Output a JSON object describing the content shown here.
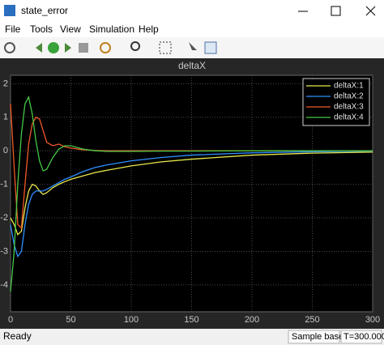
{
  "window": {
    "title": "state_error",
    "menu": [
      "File",
      "Tools",
      "View",
      "Simulation",
      "Help"
    ]
  },
  "status": {
    "left": "Ready",
    "mode": "Sample based",
    "time": "T=300.000"
  },
  "chart_data": {
    "type": "line",
    "title": "deltaX",
    "x": [
      0,
      3,
      6,
      9,
      12,
      15,
      18,
      21,
      24,
      27,
      30,
      35,
      40,
      45,
      50,
      60,
      70,
      80,
      100,
      125,
      150,
      200,
      250,
      300
    ],
    "series": [
      {
        "name": "deltaX:1",
        "color": "#e8e84a",
        "values": [
          -2.0,
          -2.2,
          -2.5,
          -2.4,
          -1.7,
          -1.2,
          -1.0,
          -1.05,
          -1.2,
          -1.3,
          -1.25,
          -1.1,
          -1.0,
          -0.92,
          -0.85,
          -0.75,
          -0.65,
          -0.58,
          -0.45,
          -0.33,
          -0.25,
          -0.13,
          -0.07,
          -0.04
        ]
      },
      {
        "name": "deltaX:2",
        "color": "#2f8fff",
        "values": [
          -2.2,
          -2.8,
          -3.15,
          -3.0,
          -2.2,
          -1.6,
          -1.3,
          -1.2,
          -1.2,
          -1.2,
          -1.15,
          -1.05,
          -0.95,
          -0.85,
          -0.78,
          -0.62,
          -0.5,
          -0.42,
          -0.3,
          -0.2,
          -0.13,
          -0.06,
          -0.03,
          -0.01
        ]
      },
      {
        "name": "deltaX:3",
        "color": "#f05a28",
        "values": [
          1.4,
          -0.5,
          -2.2,
          -2.3,
          -1.0,
          0.2,
          0.8,
          1.0,
          0.95,
          0.6,
          0.25,
          0.15,
          0.2,
          0.12,
          0.08,
          0.03,
          0.01,
          0,
          0,
          0,
          0,
          0,
          0,
          0
        ]
      },
      {
        "name": "deltaX:4",
        "color": "#46c846",
        "values": [
          -4.2,
          -3.0,
          -1.0,
          0.5,
          1.4,
          1.6,
          1.1,
          0.3,
          -0.3,
          -0.6,
          -0.55,
          -0.2,
          0.05,
          0.15,
          0.15,
          0.05,
          0,
          -0.02,
          -0.02,
          -0.01,
          -0.01,
          0,
          0,
          0
        ]
      }
    ],
    "xlim": [
      0,
      300
    ],
    "ylim": [
      -4.8,
      2.25
    ],
    "xticks": [
      0,
      50,
      100,
      150,
      200,
      250,
      300
    ],
    "yticks": [
      -4,
      -3,
      -2,
      -1,
      0,
      1,
      2
    ],
    "grid": true,
    "legend": "upper right"
  }
}
